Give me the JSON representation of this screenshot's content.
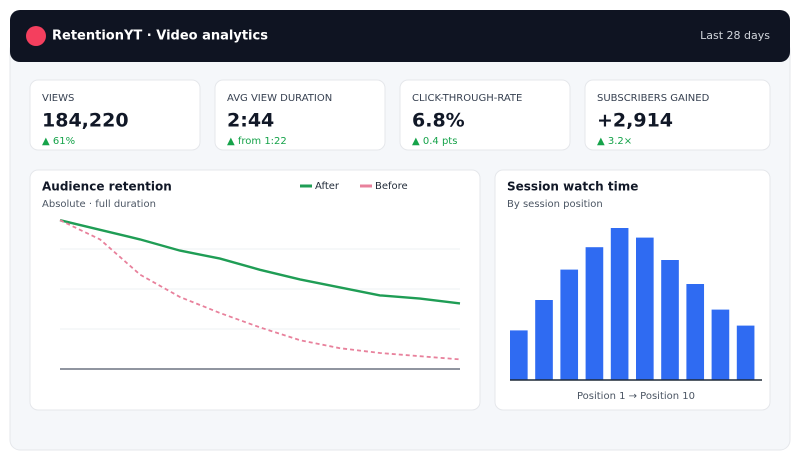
{
  "header": {
    "title": "RetentionYT · Video analytics",
    "period": "Last 28 days"
  },
  "kpis": [
    {
      "label": "VIEWS",
      "value": "184,220",
      "delta": "▲ 61%"
    },
    {
      "label": "AVG VIEW DURATION",
      "value": "2:44",
      "delta": "▲ from 1:22"
    },
    {
      "label": "CLICK-THROUGH-RATE",
      "value": "6.8%",
      "delta": "▲ 0.4 pts"
    },
    {
      "label": "SUBSCRIBERS GAINED",
      "value": "+2,914",
      "delta": "▲ 3.2×"
    }
  ],
  "chart_data": [
    {
      "type": "line",
      "title": "Audience retention",
      "subtitle": "Absolute · full duration",
      "categories": [
        null,
        null,
        null,
        null,
        null,
        null,
        null,
        null,
        null,
        null,
        null
      ],
      "series": [
        {
          "name": "After",
          "color": "#1f9d55",
          "values": [
            93,
            87,
            81,
            74,
            69,
            62,
            56,
            51,
            46,
            44,
            41
          ]
        },
        {
          "name": "Before",
          "color": "#e8819c",
          "dashed": true,
          "values": [
            93,
            81,
            59,
            45,
            35,
            26,
            18,
            13,
            10,
            8,
            6
          ]
        }
      ],
      "ylim": [
        0,
        100
      ],
      "yticks": [
        0,
        25,
        50,
        75
      ],
      "grid": true,
      "legend": "top"
    },
    {
      "type": "bar",
      "title": "Session watch time",
      "subtitle": "By session position",
      "x_label": "Position 1 → Position 10",
      "categories": [
        null,
        null,
        null,
        null,
        null,
        null,
        null,
        null,
        null,
        null
      ],
      "values": [
        31,
        50,
        69,
        83,
        95,
        89,
        75,
        60,
        44,
        34
      ],
      "color": "#2f6bf2",
      "ylim": [
        0,
        100
      ]
    }
  ]
}
